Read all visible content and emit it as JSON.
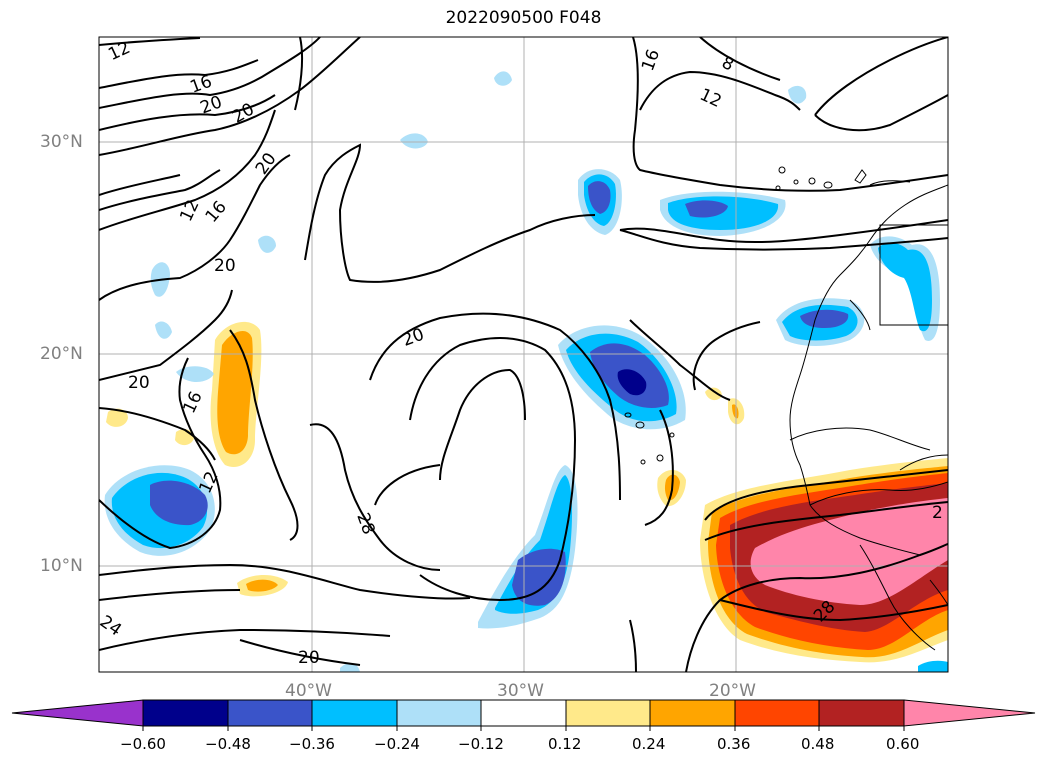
{
  "title": "2022090500 F048",
  "lat_labels": [
    "30°N",
    "20°N",
    "10°N"
  ],
  "lon_labels": [
    "40°W",
    "30°W",
    "20°W"
  ],
  "contour_labels": [
    "12",
    "16",
    "20",
    "20",
    "20",
    "12",
    "16",
    "20",
    "20",
    "16",
    "12",
    "20",
    "16",
    "12",
    "8",
    "28",
    "24",
    "20",
    "28",
    "2"
  ],
  "colorbar": {
    "ticks": [
      "−0.60",
      "−0.48",
      "−0.36",
      "−0.24",
      "−0.12",
      "0.12",
      "0.24",
      "0.36",
      "0.48",
      "0.60"
    ],
    "colors": [
      "#9932cc",
      "#00008b",
      "#3a54c9",
      "#00bfff",
      "#aee0f8",
      "#ffffff",
      "#ffe98a",
      "#ffa500",
      "#ff4500",
      "#b22222",
      "#ff85aa"
    ]
  }
}
